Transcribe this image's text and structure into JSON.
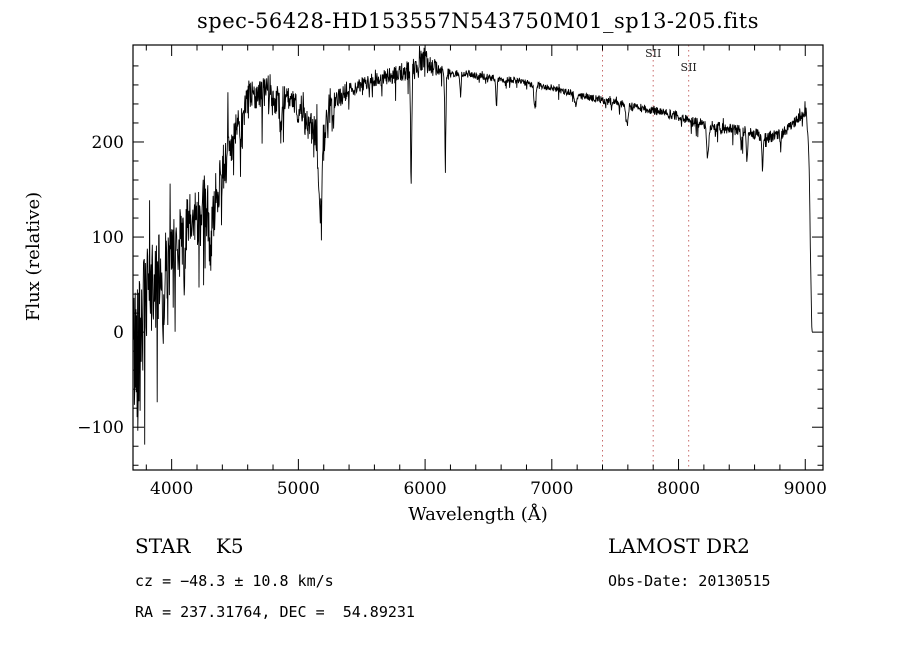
{
  "title": "spec-56428-HD153557N543750M01_sp13-205.fits",
  "annotations": {
    "classification": "STAR    K5",
    "survey": "LAMOST DR2",
    "cz": "cz = −48.3 ± 10.8 km/s",
    "obs_date": "Obs-Date: 20130515",
    "radec": "RA = 237.31764, DEC =  54.89231"
  },
  "chart_data": {
    "type": "line",
    "title": "spec-56428-HD153557N543750M01_sp13-205.fits",
    "xlabel": "Wavelength (Å)",
    "ylabel": "Flux (relative)",
    "xlim": [
      3695,
      9140
    ],
    "ylim": [
      -145,
      302
    ],
    "grid": false,
    "legend": "none",
    "line_color": "#000000",
    "frame_color": "#000000",
    "x_ticks": {
      "values": [
        4000,
        5000,
        6000,
        7000,
        8000,
        9000
      ],
      "labels": [
        "4000",
        "5000",
        "6000",
        "7000",
        "8000",
        "9000"
      ],
      "minor_step": 200
    },
    "y_ticks": {
      "values": [
        -100,
        0,
        100,
        200
      ],
      "labels": [
        "−100",
        "0",
        "100",
        "200"
      ],
      "minor_step": 20
    },
    "reference_lines": {
      "color": "#c96a6a",
      "style": "dotted",
      "items": [
        {
          "x": 7400,
          "label": ""
        },
        {
          "x": 7800,
          "label": "SII",
          "label_dy": 12
        },
        {
          "x": 8080,
          "label": "SII",
          "label_dy": 26
        }
      ]
    },
    "spectrum": {
      "description": "Noisy K5 stellar spectrum: rises steeply from ~3700Å, broad maximum near 6000Å, slow decline to 9000Å, sharp cutoff at red end",
      "start": 3700,
      "end": 9055,
      "sample_step": 3,
      "seed": 42,
      "continuum": [
        [
          3700,
          -25
        ],
        [
          3720,
          -15
        ],
        [
          3750,
          5
        ],
        [
          3780,
          20
        ],
        [
          3810,
          35
        ],
        [
          3850,
          45
        ],
        [
          3900,
          58
        ],
        [
          3950,
          70
        ],
        [
          4000,
          78
        ],
        [
          4050,
          92
        ],
        [
          4100,
          105
        ],
        [
          4150,
          112
        ],
        [
          4200,
          122
        ],
        [
          4250,
          132
        ],
        [
          4300,
          128
        ],
        [
          4350,
          148
        ],
        [
          4400,
          172
        ],
        [
          4450,
          190
        ],
        [
          4500,
          205
        ],
        [
          4550,
          222
        ],
        [
          4600,
          242
        ],
        [
          4650,
          253
        ],
        [
          4700,
          248
        ],
        [
          4750,
          254
        ],
        [
          4800,
          250
        ],
        [
          4850,
          240
        ],
        [
          4900,
          246
        ],
        [
          4950,
          240
        ],
        [
          5000,
          234
        ],
        [
          5050,
          224
        ],
        [
          5100,
          214
        ],
        [
          5150,
          205
        ],
        [
          5180,
          200
        ],
        [
          5220,
          215
        ],
        [
          5260,
          232
        ],
        [
          5300,
          244
        ],
        [
          5350,
          250
        ],
        [
          5400,
          254
        ],
        [
          5500,
          260
        ],
        [
          5600,
          265
        ],
        [
          5700,
          268
        ],
        [
          5800,
          272
        ],
        [
          5900,
          278
        ],
        [
          5950,
          284
        ],
        [
          6000,
          288
        ],
        [
          6050,
          281
        ],
        [
          6100,
          276
        ],
        [
          6150,
          274
        ],
        [
          6200,
          272
        ],
        [
          6300,
          272
        ],
        [
          6400,
          270
        ],
        [
          6500,
          268
        ],
        [
          6600,
          266
        ],
        [
          6700,
          265
        ],
        [
          6800,
          262
        ],
        [
          6900,
          259
        ],
        [
          7000,
          257
        ],
        [
          7100,
          253
        ],
        [
          7200,
          250
        ],
        [
          7300,
          247
        ],
        [
          7400,
          244
        ],
        [
          7500,
          241
        ],
        [
          7600,
          238
        ],
        [
          7700,
          236
        ],
        [
          7800,
          233
        ],
        [
          7900,
          230
        ],
        [
          8000,
          227
        ],
        [
          8100,
          222
        ],
        [
          8200,
          218
        ],
        [
          8300,
          216
        ],
        [
          8400,
          214
        ],
        [
          8500,
          212
        ],
        [
          8600,
          208
        ],
        [
          8700,
          205
        ],
        [
          8800,
          208
        ],
        [
          8850,
          212
        ],
        [
          8950,
          225
        ],
        [
          9010,
          232
        ],
        [
          9030,
          180
        ],
        [
          9040,
          90
        ],
        [
          9050,
          10
        ],
        [
          9055,
          0
        ]
      ],
      "noise_amplitude": [
        [
          3700,
          85
        ],
        [
          3750,
          75
        ],
        [
          3800,
          55
        ],
        [
          3900,
          45
        ],
        [
          4000,
          40
        ],
        [
          4100,
          36
        ],
        [
          4200,
          34
        ],
        [
          4300,
          34
        ],
        [
          4400,
          28
        ],
        [
          4500,
          22
        ],
        [
          4600,
          17
        ],
        [
          4700,
          17
        ],
        [
          4800,
          17
        ],
        [
          4900,
          15
        ],
        [
          5000,
          15
        ],
        [
          5100,
          18
        ],
        [
          5200,
          22
        ],
        [
          5300,
          12
        ],
        [
          5400,
          9
        ],
        [
          5500,
          8
        ],
        [
          5600,
          8
        ],
        [
          5700,
          9
        ],
        [
          5800,
          10
        ],
        [
          5900,
          11
        ],
        [
          6000,
          12
        ],
        [
          6100,
          8
        ],
        [
          6200,
          4
        ],
        [
          6400,
          3.5
        ],
        [
          6600,
          3.5
        ],
        [
          6800,
          3.5
        ],
        [
          7000,
          3.5
        ],
        [
          7200,
          3.5
        ],
        [
          7400,
          4
        ],
        [
          7600,
          4.5
        ],
        [
          7800,
          4.5
        ],
        [
          8000,
          5
        ],
        [
          8200,
          6
        ],
        [
          8400,
          6
        ],
        [
          8600,
          7
        ],
        [
          8800,
          6
        ],
        [
          9000,
          5
        ]
      ],
      "absorption_features": [
        [
          3933,
          55,
          6
        ],
        [
          3968,
          45,
          5
        ],
        [
          4101,
          40,
          5
        ],
        [
          4226,
          30,
          4
        ],
        [
          4305,
          40,
          10
        ],
        [
          4340,
          35,
          5
        ],
        [
          4861,
          30,
          5
        ],
        [
          5172,
          80,
          12
        ],
        [
          5890,
          118,
          5
        ],
        [
          6160,
          105,
          4
        ],
        [
          6280,
          18,
          5
        ],
        [
          6563,
          28,
          5
        ],
        [
          6867,
          22,
          8
        ],
        [
          7190,
          14,
          8
        ],
        [
          7594,
          18,
          8
        ],
        [
          8230,
          32,
          8
        ],
        [
          8498,
          22,
          5
        ],
        [
          8542,
          32,
          5
        ],
        [
          8662,
          32,
          5
        ],
        [
          8806,
          16,
          5
        ]
      ]
    }
  }
}
